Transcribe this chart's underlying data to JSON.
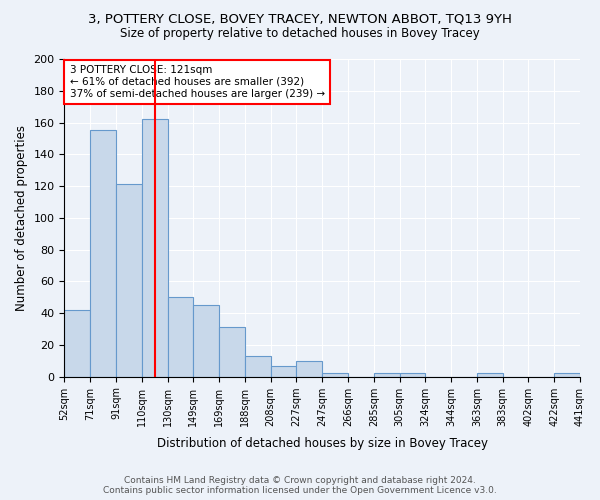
{
  "title1": "3, POTTERY CLOSE, BOVEY TRACEY, NEWTON ABBOT, TQ13 9YH",
  "title2": "Size of property relative to detached houses in Bovey Tracey",
  "xlabel": "Distribution of detached houses by size in Bovey Tracey",
  "ylabel": "Number of detached properties",
  "bin_labels": [
    "52sqm",
    "71sqm",
    "91sqm",
    "110sqm",
    "130sqm",
    "149sqm",
    "169sqm",
    "188sqm",
    "208sqm",
    "227sqm",
    "247sqm",
    "266sqm",
    "285sqm",
    "305sqm",
    "324sqm",
    "344sqm",
    "363sqm",
    "383sqm",
    "402sqm",
    "422sqm",
    "441sqm"
  ],
  "bar_heights": [
    42,
    155,
    121,
    162,
    50,
    45,
    31,
    13,
    7,
    10,
    2,
    0,
    2,
    2,
    0,
    0,
    2,
    0,
    0,
    2
  ],
  "bar_color": "#c8d8ea",
  "bar_edge_color": "#6699cc",
  "red_line_bin": 3.5,
  "annotation_title": "3 POTTERY CLOSE: 121sqm",
  "annotation_line1": "← 61% of detached houses are smaller (392)",
  "annotation_line2": "37% of semi-detached houses are larger (239) →",
  "ylim": [
    0,
    200
  ],
  "yticks": [
    0,
    20,
    40,
    60,
    80,
    100,
    120,
    140,
    160,
    180,
    200
  ],
  "footnote1": "Contains HM Land Registry data © Crown copyright and database right 2024.",
  "footnote2": "Contains public sector information licensed under the Open Government Licence v3.0.",
  "bg_color": "#edf2f9",
  "grid_color": "#d0d8e8"
}
